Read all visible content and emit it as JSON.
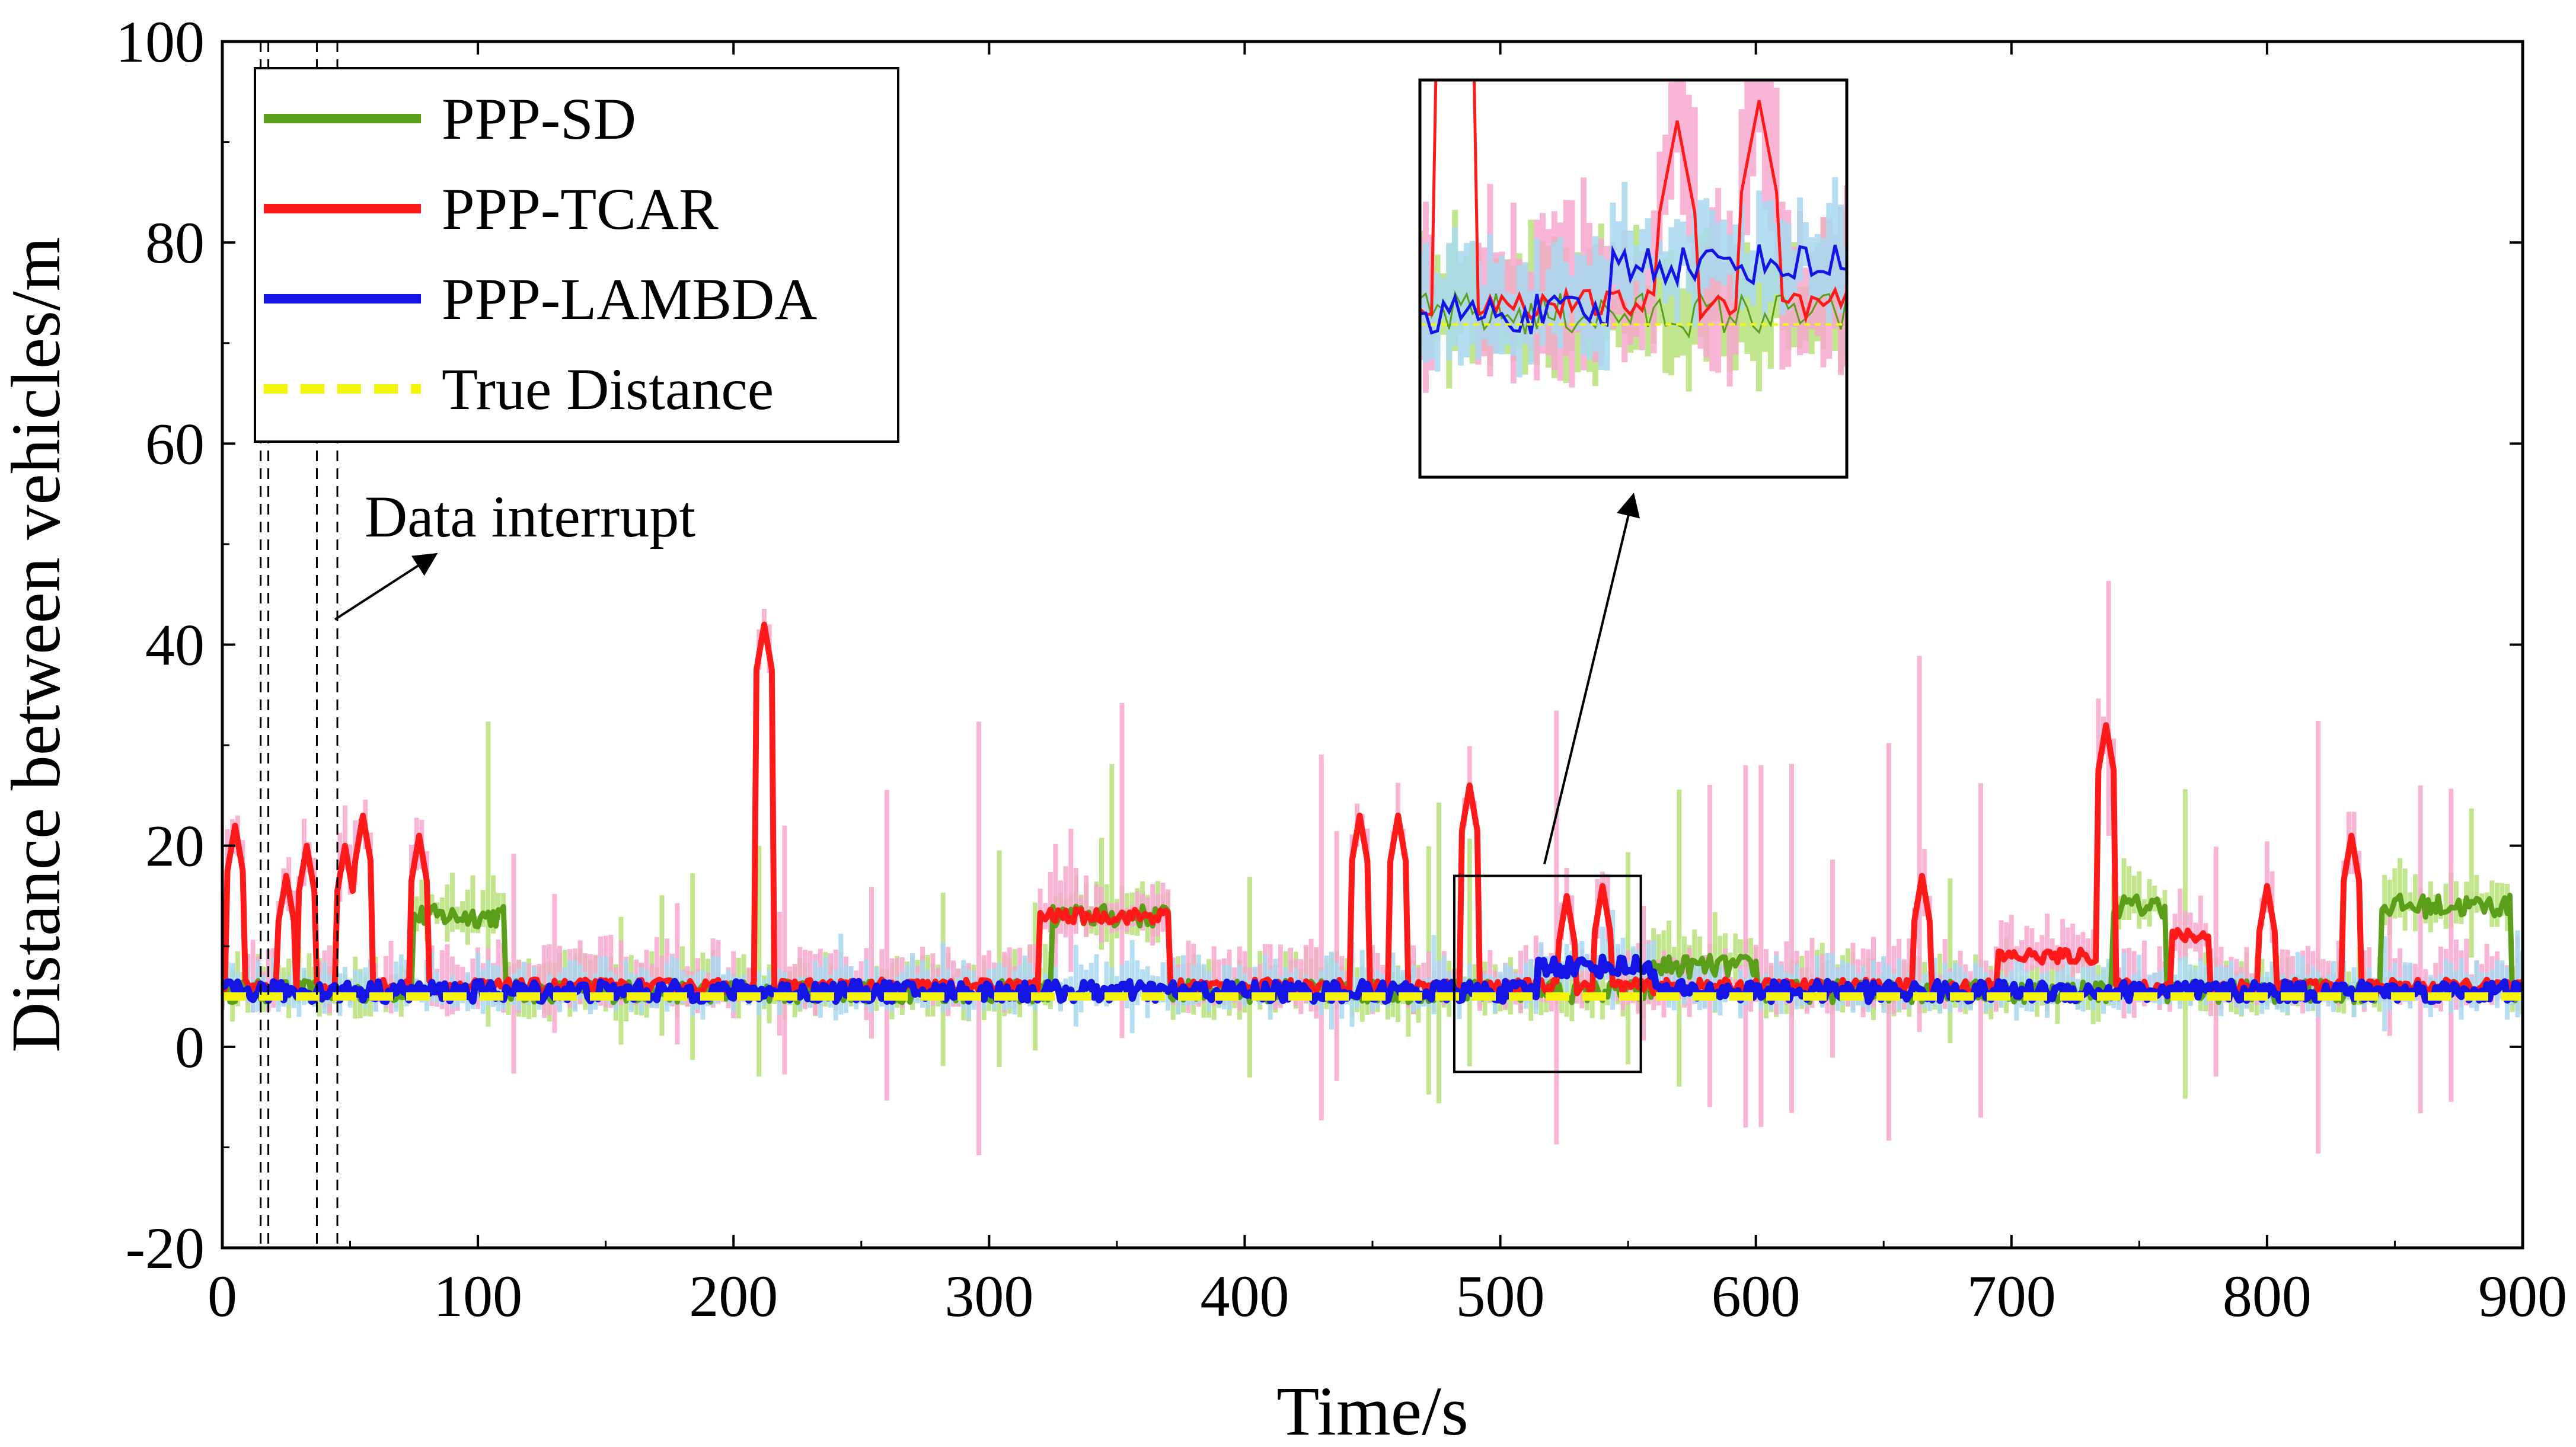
{
  "chart_data": {
    "type": "line",
    "title": "",
    "xlabel": "Time/s",
    "ylabel": "Distance between vehicles/m",
    "xlim": [
      0,
      900
    ],
    "ylim": [
      -20,
      100
    ],
    "x_ticks": [
      0,
      100,
      200,
      300,
      400,
      500,
      600,
      700,
      800,
      900
    ],
    "y_ticks": [
      -20,
      0,
      20,
      40,
      60,
      80,
      100
    ],
    "grid": false,
    "legend_position": "top-left",
    "series": [
      {
        "name": "PPP-SD",
        "color": "#5a9e1a",
        "band_color": "#b7e27a",
        "style": "solid",
        "baseline": 5.5,
        "segments": [
          {
            "from": 75,
            "to": 110,
            "value": 13
          },
          {
            "from": 325,
            "to": 370,
            "value": 13
          },
          {
            "from": 560,
            "to": 600,
            "value": 8
          },
          {
            "from": 740,
            "to": 760,
            "value": 14
          },
          {
            "from": 845,
            "to": 895,
            "value": 14
          }
        ]
      },
      {
        "name": "PPP-TCAR",
        "color": "#ff1a1a",
        "band_color": "#f7a8cf",
        "style": "solid",
        "baseline": 6,
        "spikes": [
          {
            "t": 5,
            "v": 22
          },
          {
            "t": 25,
            "v": 17
          },
          {
            "t": 33,
            "v": 20
          },
          {
            "t": 48,
            "v": 20
          },
          {
            "t": 55,
            "v": 23
          },
          {
            "t": 77,
            "v": 21
          },
          {
            "t": 212,
            "v": 42
          },
          {
            "t": 445,
            "v": 23
          },
          {
            "t": 460,
            "v": 23
          },
          {
            "t": 488,
            "v": 26
          },
          {
            "t": 526,
            "v": 15
          },
          {
            "t": 540,
            "v": 16
          },
          {
            "t": 665,
            "v": 17
          },
          {
            "t": 737,
            "v": 32
          },
          {
            "t": 800,
            "v": 16
          },
          {
            "t": 833,
            "v": 21
          }
        ],
        "segments": [
          {
            "from": 320,
            "to": 370,
            "value": 13
          },
          {
            "from": 695,
            "to": 735,
            "value": 9
          },
          {
            "from": 763,
            "to": 777,
            "value": 11
          }
        ]
      },
      {
        "name": "PPP-LAMBDA",
        "color": "#1414e6",
        "band_color": "#a8d8f0",
        "style": "solid",
        "baseline": 5.5,
        "segments": [
          {
            "from": 515,
            "to": 560,
            "value": 8
          }
        ]
      },
      {
        "name": "True Distance",
        "color": "#f5f50a",
        "style": "dashed",
        "value": 5
      }
    ],
    "data_interrupts": [
      {
        "from": 15,
        "to": 18
      },
      {
        "from": 37,
        "to": 45
      }
    ],
    "annotations": [
      {
        "text": "Data interrupt",
        "points_to_time": 45
      }
    ],
    "zoom_region": {
      "x_from": 482,
      "x_to": 555,
      "y_from": -2.5,
      "y_to": 17
    }
  }
}
